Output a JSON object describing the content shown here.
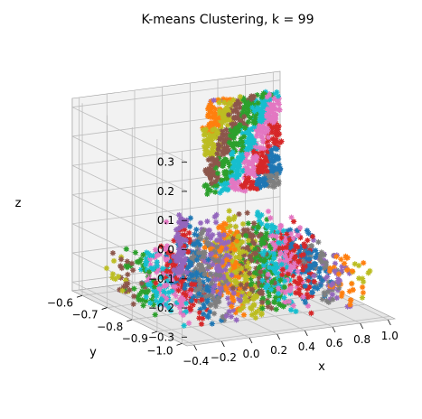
{
  "chart_data": {
    "type": "scatter",
    "projection": "3d",
    "title": "K-means Clustering, k = 99",
    "xlabel": "x",
    "ylabel": "y",
    "zlabel": "z",
    "xlim": [
      -0.45,
      1.05
    ],
    "ylim": [
      -1.02,
      -0.56
    ],
    "zlim": [
      -0.33,
      0.33
    ],
    "x_ticks": [
      "−0.4",
      "−0.2",
      "0.0",
      "0.2",
      "0.4",
      "0.6",
      "0.8",
      "1.0"
    ],
    "y_ticks": [
      "−0.6",
      "−0.7",
      "−0.8",
      "−0.9",
      "−1.0"
    ],
    "z_ticks": [
      "0.3",
      "0.2",
      "0.1",
      "0.0",
      "−0.1",
      "−0.2",
      "−0.3"
    ],
    "grid": true,
    "marker": "star",
    "palette": [
      "#1f77b4",
      "#ff7f0e",
      "#2ca02c",
      "#d62728",
      "#9467bd",
      "#8c564b",
      "#e377c2",
      "#7f7f7f",
      "#bcbd22",
      "#17becf"
    ],
    "clusters": 99,
    "point_groups": [
      {
        "region": "wall",
        "xr": [
          0.45,
          0.98
        ],
        "y": -0.58,
        "zr": [
          -0.04,
          0.28
        ],
        "count": 900
      },
      {
        "region": "floor-main",
        "xr": [
          -0.35,
          1.0
        ],
        "yr": [
          -0.96,
          -0.64
        ],
        "zr": [
          -0.31,
          -0.16
        ],
        "count": 1200
      },
      {
        "region": "objects",
        "xr": [
          -0.05,
          0.75
        ],
        "yr": [
          -0.9,
          -0.7
        ],
        "zr": [
          -0.2,
          -0.05
        ],
        "count": 450
      },
      {
        "region": "post",
        "xr": [
          -0.12,
          -0.08
        ],
        "yr": [
          -0.82,
          -0.78
        ],
        "zr": [
          -0.2,
          0.0
        ],
        "count": 60
      }
    ]
  }
}
